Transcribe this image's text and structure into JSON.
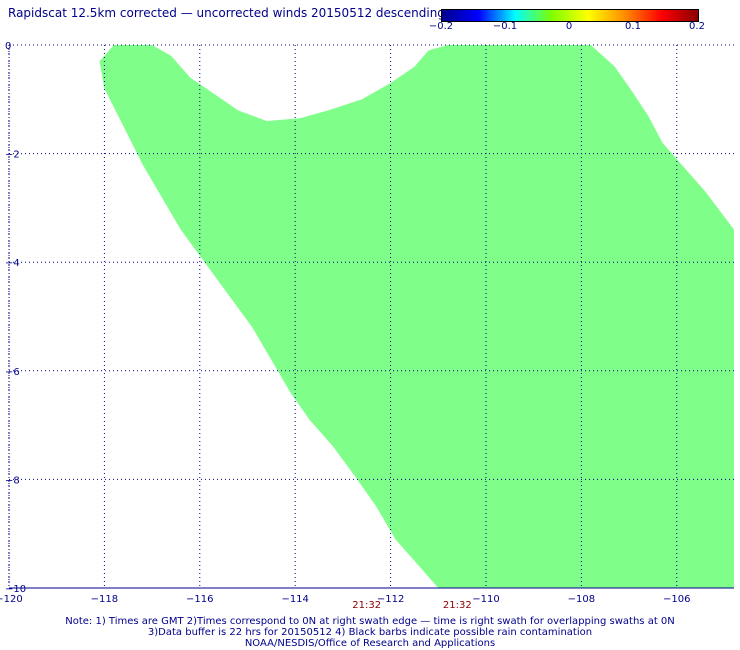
{
  "title": "Rapidscat 12.5km corrected — uncorrected winds 20150512 descending",
  "colorbar": {
    "ticks": [
      "−0.2",
      "−0.1",
      "0",
      "0.1",
      "0.2"
    ],
    "stops": [
      "#00008b",
      "#0000ff",
      "#00ffff",
      "#7fff00",
      "#ffff00",
      "#ff8c00",
      "#ff0000",
      "#8b0000"
    ]
  },
  "chart_data": {
    "type": "heatmap",
    "title": "Rapidscat 12.5km corrected — uncorrected winds 20150512 descending",
    "xlim": [
      -120,
      -104.8
    ],
    "ylim": [
      -10,
      0
    ],
    "xticks": [
      -120,
      -118,
      -116,
      -114,
      -112,
      -110,
      -108,
      -106
    ],
    "xtick_labels": [
      "−120",
      "−118",
      "−116",
      "−114",
      "−112",
      "−110",
      "−108",
      "−106"
    ],
    "yticks": [
      0,
      -2,
      -4,
      -6,
      -8,
      -10
    ],
    "ytick_labels": [
      "0",
      "−2",
      "−4",
      "−6",
      "−8",
      "−10"
    ],
    "grid": true,
    "swath_value": 0,
    "swath_color": "#7fff8a",
    "swath_boundary_lon_lat": [
      [
        -117.8,
        0.0
      ],
      [
        -117.0,
        0.0
      ],
      [
        -116.6,
        -0.2
      ],
      [
        -116.2,
        -0.6
      ],
      [
        -115.7,
        -0.9
      ],
      [
        -115.2,
        -1.2
      ],
      [
        -114.6,
        -1.4
      ],
      [
        -113.9,
        -1.35
      ],
      [
        -113.3,
        -1.2
      ],
      [
        -112.6,
        -1.0
      ],
      [
        -112.0,
        -0.7
      ],
      [
        -111.5,
        -0.4
      ],
      [
        -111.2,
        -0.1
      ],
      [
        -110.8,
        0.0
      ],
      [
        -107.8,
        0.0
      ],
      [
        -107.3,
        -0.4
      ],
      [
        -106.9,
        -0.9
      ],
      [
        -106.6,
        -1.3
      ],
      [
        -106.3,
        -1.8
      ],
      [
        -105.9,
        -2.2
      ],
      [
        -105.4,
        -2.7
      ],
      [
        -104.8,
        -3.4
      ],
      [
        -104.8,
        -10.0
      ],
      [
        -111.0,
        -10.0
      ],
      [
        -111.4,
        -9.6
      ],
      [
        -111.9,
        -9.1
      ],
      [
        -112.3,
        -8.5
      ],
      [
        -112.7,
        -8.0
      ],
      [
        -113.2,
        -7.4
      ],
      [
        -113.7,
        -6.9
      ],
      [
        -114.1,
        -6.4
      ],
      [
        -114.5,
        -5.8
      ],
      [
        -114.9,
        -5.2
      ],
      [
        -115.4,
        -4.6
      ],
      [
        -115.9,
        -4.0
      ],
      [
        -116.4,
        -3.4
      ],
      [
        -116.8,
        -2.8
      ],
      [
        -117.2,
        -2.2
      ],
      [
        -117.6,
        -1.5
      ],
      [
        -118.0,
        -0.8
      ],
      [
        -118.1,
        -0.3
      ]
    ],
    "time_labels": [
      {
        "lon": -112.5,
        "text": "21:32"
      },
      {
        "lon": -110.6,
        "text": "21:32"
      }
    ]
  },
  "notes": [
    "Note: 1) Times are GMT 2)Times correspond to 0N at right swath edge — time is right swath for overlapping swaths at 0N",
    "3)Data buffer is 22 hrs for 20150512 4) Black barbs indicate possible rain contamination",
    "NOAA/NESDIS/Office of Research and Applications"
  ]
}
